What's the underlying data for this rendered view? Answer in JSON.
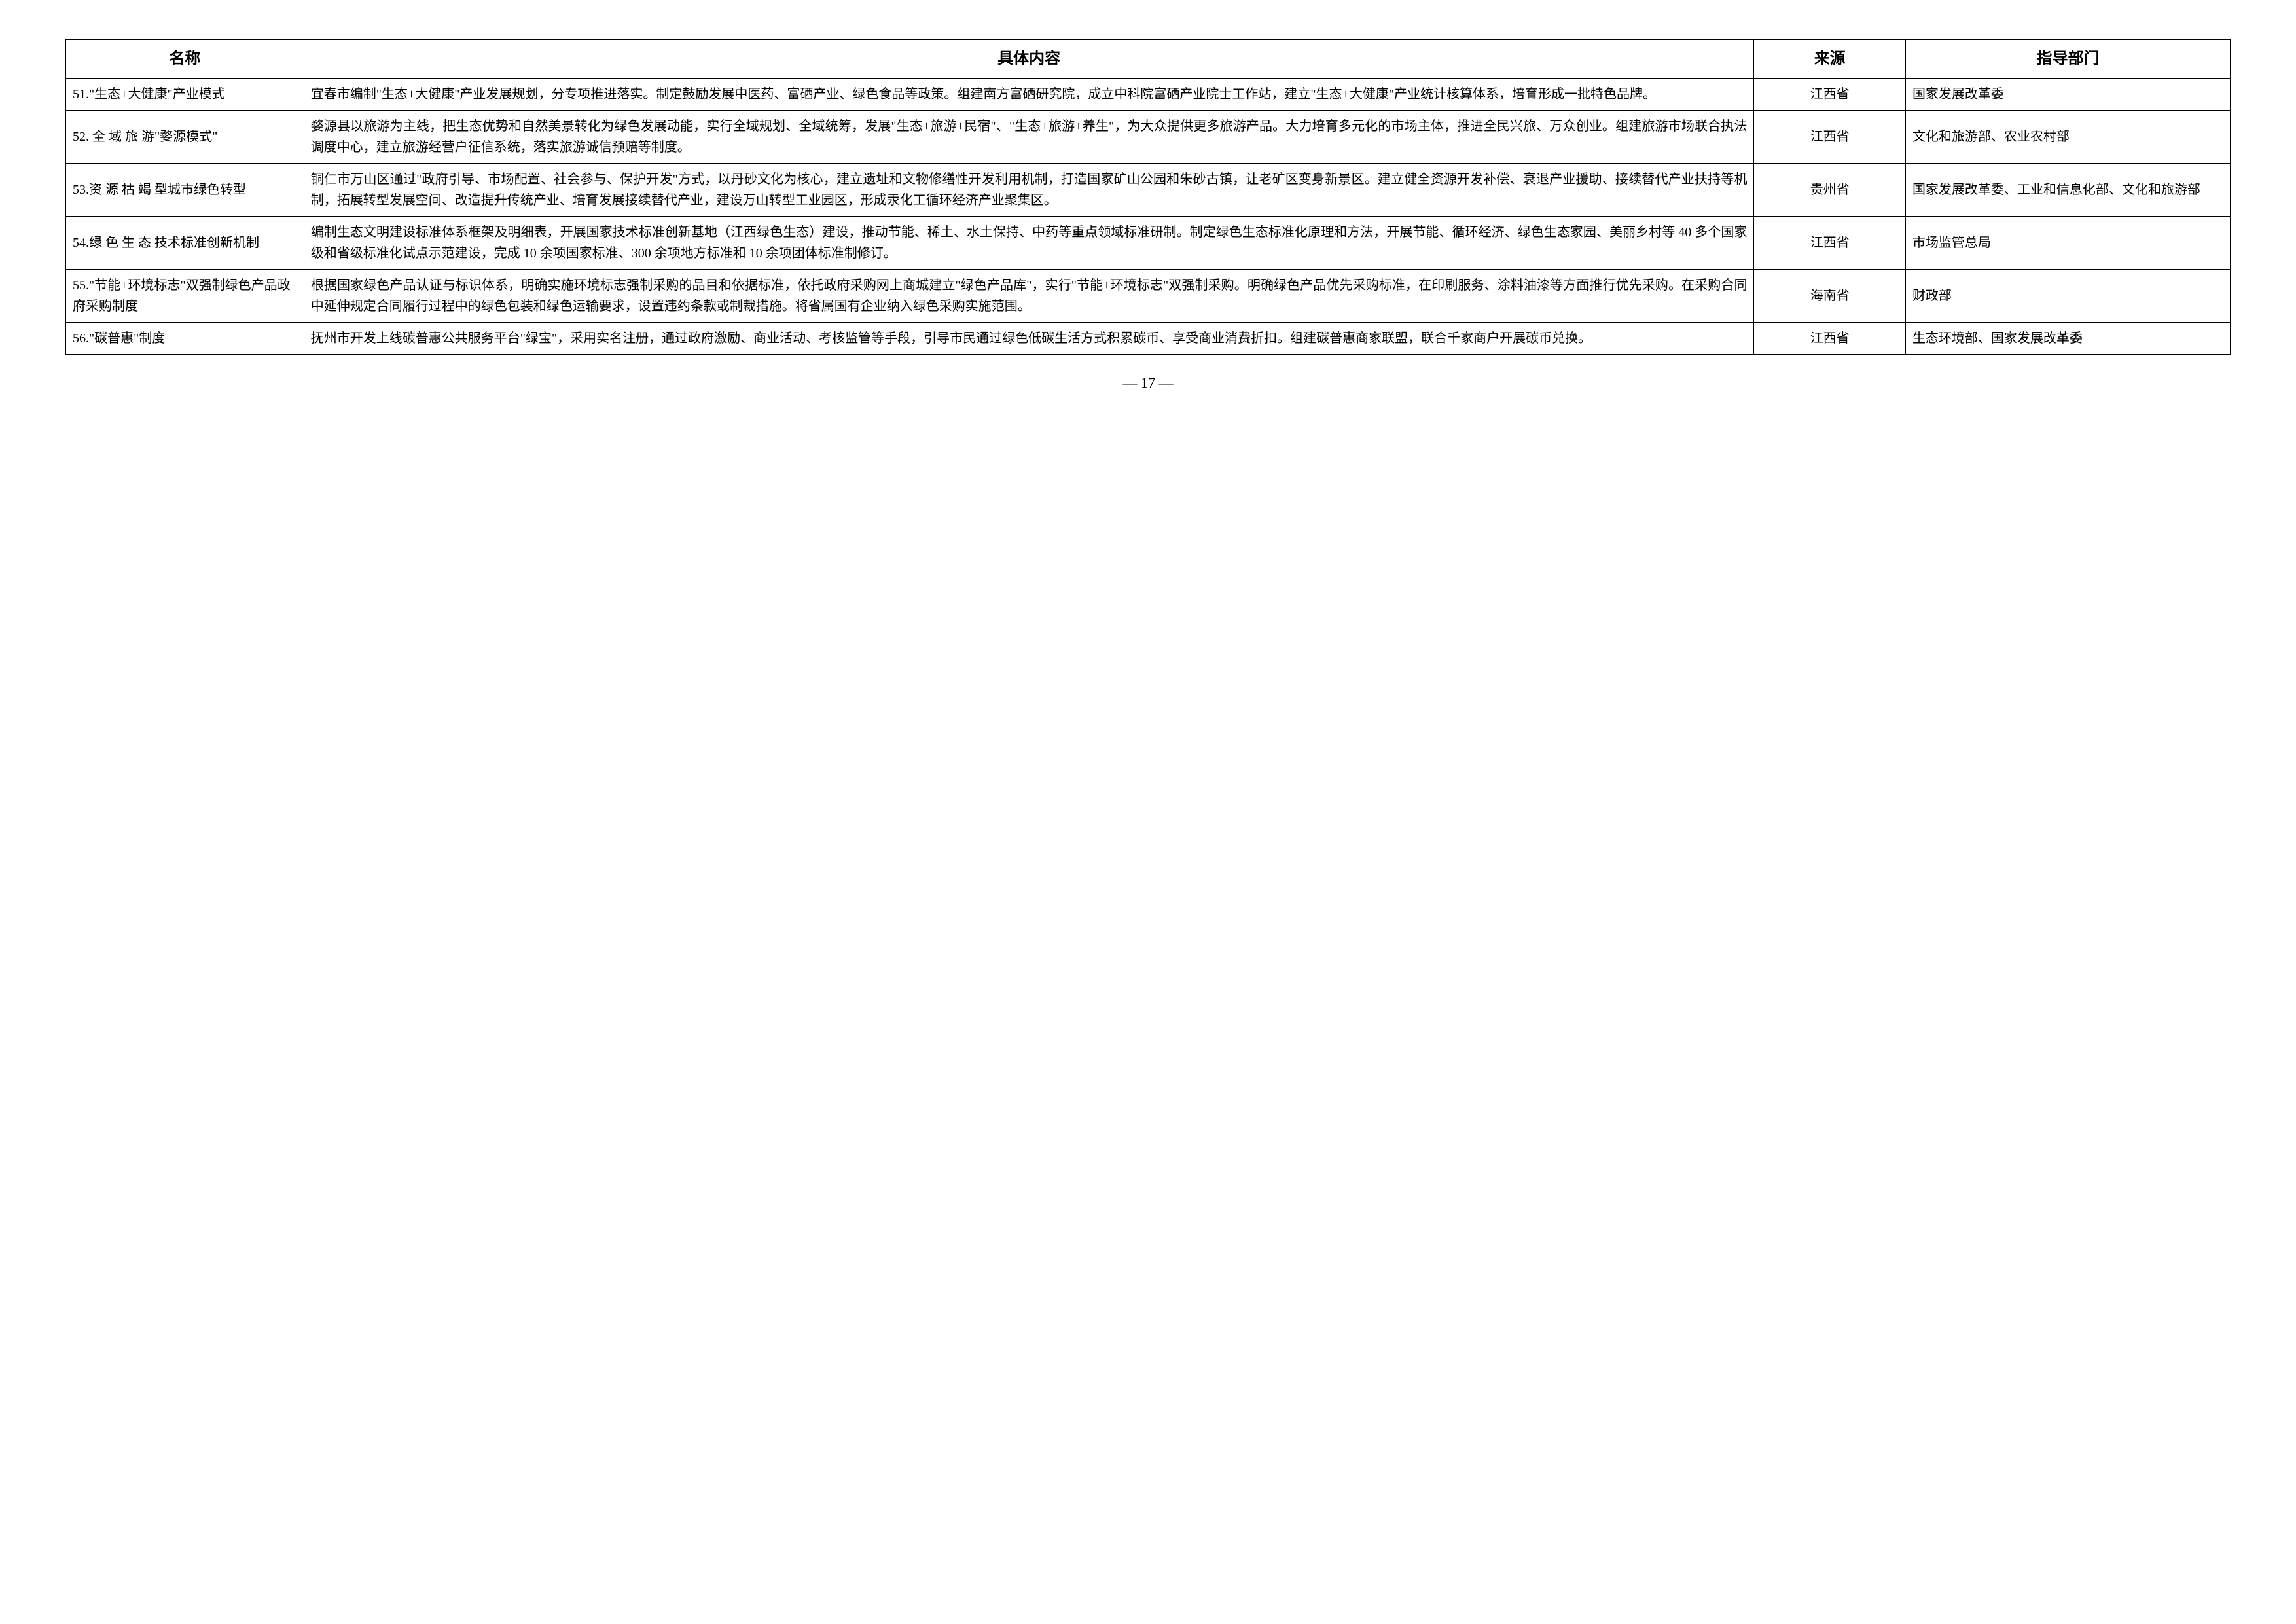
{
  "table": {
    "headers": {
      "name": "名称",
      "content": "具体内容",
      "source": "来源",
      "dept": "指导部门"
    },
    "rows": [
      {
        "name": "51.\"生态+大健康\"产业模式",
        "content": "宜春市编制\"生态+大健康\"产业发展规划，分专项推进落实。制定鼓励发展中医药、富硒产业、绿色食品等政策。组建南方富硒研究院，成立中科院富硒产业院士工作站，建立\"生态+大健康\"产业统计核算体系，培育形成一批特色品牌。",
        "source": "江西省",
        "dept": "国家发展改革委"
      },
      {
        "name": "52. 全 域 旅 游\"婺源模式\"",
        "content": "婺源县以旅游为主线，把生态优势和自然美景转化为绿色发展动能，实行全域规划、全域统筹，发展\"生态+旅游+民宿\"、\"生态+旅游+养生\"，为大众提供更多旅游产品。大力培育多元化的市场主体，推进全民兴旅、万众创业。组建旅游市场联合执法调度中心，建立旅游经营户征信系统，落实旅游诚信预赔等制度。",
        "source": "江西省",
        "dept": "文化和旅游部、农业农村部"
      },
      {
        "name": "53.资 源 枯 竭 型城市绿色转型",
        "content": "铜仁市万山区通过\"政府引导、市场配置、社会参与、保护开发\"方式，以丹砂文化为核心，建立遗址和文物修缮性开发利用机制，打造国家矿山公园和朱砂古镇，让老矿区变身新景区。建立健全资源开发补偿、衰退产业援助、接续替代产业扶持等机制，拓展转型发展空间、改造提升传统产业、培育发展接续替代产业，建设万山转型工业园区，形成汞化工循环经济产业聚集区。",
        "source": "贵州省",
        "dept": "国家发展改革委、工业和信息化部、文化和旅游部"
      },
      {
        "name": "54.绿 色 生 态 技术标准创新机制",
        "content": "编制生态文明建设标准体系框架及明细表，开展国家技术标准创新基地（江西绿色生态）建设，推动节能、稀土、水土保持、中药等重点领域标准研制。制定绿色生态标准化原理和方法，开展节能、循环经济、绿色生态家园、美丽乡村等 40 多个国家级和省级标准化试点示范建设，完成 10 余项国家标准、300 余项地方标准和 10 余项团体标准制修订。",
        "source": "江西省",
        "dept": "市场监管总局"
      },
      {
        "name": "55.\"节能+环境标志\"双强制绿色产品政府采购制度",
        "content": "根据国家绿色产品认证与标识体系，明确实施环境标志强制采购的品目和依据标准，依托政府采购网上商城建立\"绿色产品库\"，实行\"节能+环境标志\"双强制采购。明确绿色产品优先采购标准，在印刷服务、涂料油漆等方面推行优先采购。在采购合同中延伸规定合同履行过程中的绿色包装和绿色运输要求，设置违约条款或制裁措施。将省属国有企业纳入绿色采购实施范围。",
        "source": "海南省",
        "dept": "财政部"
      },
      {
        "name": "56.\"碳普惠\"制度",
        "content": "抚州市开发上线碳普惠公共服务平台\"绿宝\"，采用实名注册，通过政府激励、商业活动、考核监管等手段，引导市民通过绿色低碳生活方式积累碳币、享受商业消费折扣。组建碳普惠商家联盟，联合千家商户开展碳币兑换。",
        "source": "江西省",
        "dept": "生态环境部、国家发展改革委"
      }
    ]
  },
  "page_number": "— 17 —"
}
